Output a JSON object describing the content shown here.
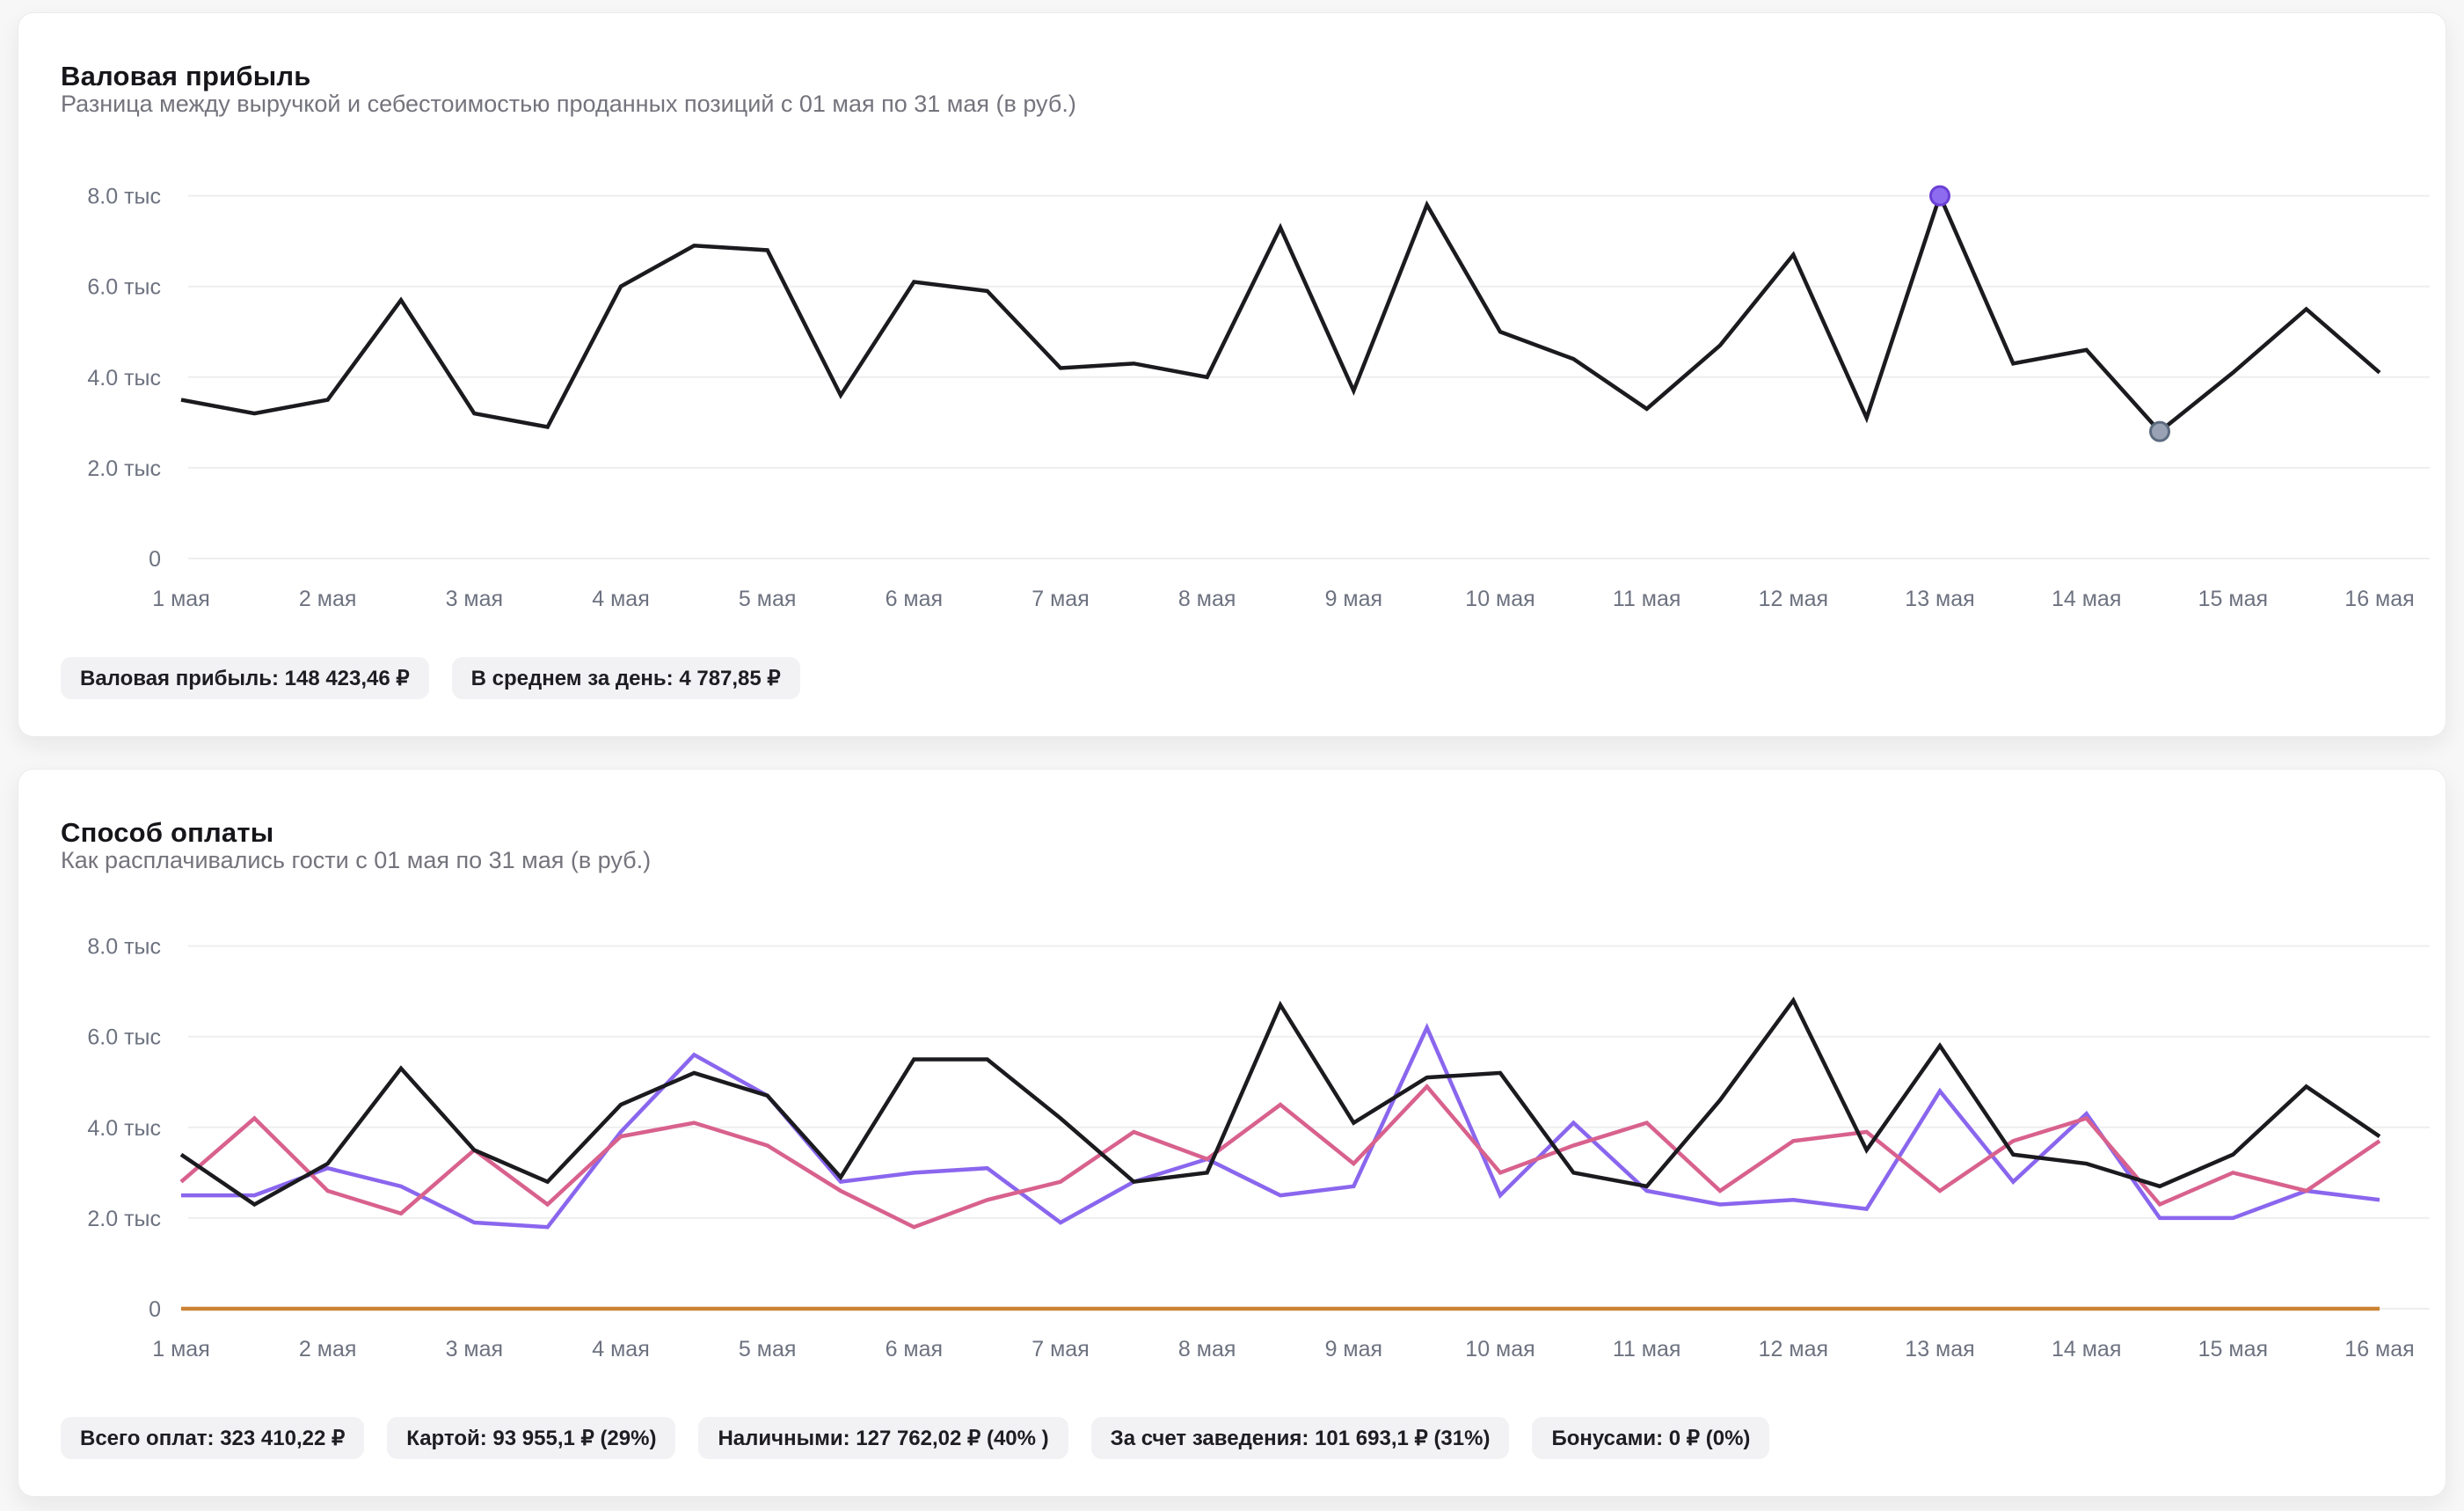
{
  "cards": [
    {
      "title": "Валовая прибыль",
      "subtitle": "Разница между выручкой и себестоимостью проданных позиций с 01 мая по 31 мая (в руб.)",
      "badges": [
        "Валовая прибыль: 148 423,46 ₽",
        "В среднем за день: 4 787,85 ₽"
      ]
    },
    {
      "title": "Способ оплаты",
      "subtitle": "Как расплачивались гости с 01 мая по 31 мая (в руб.)",
      "badges": [
        "Всего оплат: 323 410,22 ₽",
        "Картой: 93 955,1 ₽ (29%)",
        "Наличными: 127 762,02 ₽ (40% )",
        "За счет заведения: 101 693,1 ₽ (31%)",
        "Бонусами: 0 ₽ (0%)"
      ]
    }
  ],
  "chart_data": [
    {
      "type": "line",
      "title": "Валовая прибыль",
      "x_labels": [
        "1 мая",
        "2 мая",
        "3 мая",
        "4 мая",
        "5 мая",
        "6 мая",
        "7 мая",
        "8 мая",
        "9 мая",
        "10 мая",
        "11 мая",
        "12 мая",
        "13 мая",
        "14 мая",
        "15 мая",
        "16 мая"
      ],
      "points_per_label": 2,
      "y_unit": "тыс",
      "ylim": [
        0,
        8
      ],
      "grid": true,
      "legend": "none",
      "y_ticks": {
        "values": [
          8,
          6,
          4,
          2,
          0
        ],
        "labels": [
          "8.0 тыс",
          "6.0 тыс",
          "4.0 тыс",
          "2.0 тыс",
          "0"
        ]
      },
      "series": [
        {
          "name": "Валовая прибыль",
          "color": "#1b1b1f",
          "values": [
            3.5,
            3.2,
            3.5,
            5.7,
            3.2,
            2.9,
            6.0,
            6.9,
            6.8,
            3.6,
            6.1,
            5.9,
            4.2,
            4.3,
            4.0,
            7.3,
            3.7,
            7.8,
            5.0,
            4.4,
            3.3,
            4.7,
            6.7,
            3.1,
            8.0,
            4.3,
            4.6,
            2.8,
            4.1,
            5.5,
            4.1
          ]
        }
      ],
      "highlights": [
        {
          "series": 0,
          "index": 24,
          "value": 8.0,
          "fill": "#8e6cf0",
          "stroke": "#6b3fd6"
        },
        {
          "series": 0,
          "index": 27,
          "value": 2.8,
          "fill": "#99a2b4",
          "stroke": "#5c6b80"
        }
      ]
    },
    {
      "type": "line",
      "title": "Способ оплаты",
      "x_labels": [
        "1 мая",
        "2 мая",
        "3 мая",
        "4 мая",
        "5 мая",
        "6 мая",
        "7 мая",
        "8 мая",
        "9 мая",
        "10 мая",
        "11 мая",
        "12 мая",
        "13 мая",
        "14 мая",
        "15 мая",
        "16 мая"
      ],
      "points_per_label": 2,
      "y_unit": "тыс",
      "ylim": [
        0,
        8
      ],
      "grid": true,
      "legend": "none",
      "y_ticks": {
        "values": [
          8,
          6,
          4,
          2,
          0
        ],
        "labels": [
          "8.0 тыс",
          "6.0 тыс",
          "4.0 тыс",
          "2.0 тыс",
          "0"
        ]
      },
      "series": [
        {
          "name": "Бонусами",
          "color": "#cc8434",
          "values": [
            0,
            0,
            0,
            0,
            0,
            0,
            0,
            0,
            0,
            0,
            0,
            0,
            0,
            0,
            0,
            0,
            0,
            0,
            0,
            0,
            0,
            0,
            0,
            0,
            0,
            0,
            0,
            0,
            0,
            0,
            0
          ]
        },
        {
          "name": "Картой",
          "color": "#8a66ee",
          "values": [
            2.5,
            2.5,
            3.1,
            2.7,
            1.9,
            1.8,
            3.9,
            5.6,
            4.7,
            2.8,
            3.0,
            3.1,
            1.9,
            2.8,
            3.3,
            2.5,
            2.7,
            6.2,
            2.5,
            4.1,
            2.6,
            2.3,
            2.4,
            2.2,
            4.8,
            2.8,
            4.3,
            2.0,
            2.0,
            2.6,
            2.4
          ]
        },
        {
          "name": "За счет заведения",
          "color": "#d8618d",
          "values": [
            2.8,
            4.2,
            2.6,
            2.1,
            3.5,
            2.3,
            3.8,
            4.1,
            3.6,
            2.6,
            1.8,
            2.4,
            2.8,
            3.9,
            3.3,
            4.5,
            3.2,
            4.9,
            3.0,
            3.6,
            4.1,
            2.6,
            3.7,
            3.9,
            2.6,
            3.7,
            4.2,
            2.3,
            3.0,
            2.6,
            3.7
          ]
        },
        {
          "name": "Наличными",
          "color": "#1b1b1f",
          "values": [
            3.4,
            2.3,
            3.2,
            5.3,
            3.5,
            2.8,
            4.5,
            5.2,
            4.7,
            2.9,
            5.5,
            5.5,
            4.2,
            2.8,
            3.0,
            6.7,
            4.1,
            5.1,
            5.2,
            3.0,
            2.7,
            4.6,
            6.8,
            3.5,
            5.8,
            3.4,
            3.2,
            2.7,
            3.4,
            4.9,
            3.8
          ]
        }
      ],
      "highlights": []
    }
  ]
}
